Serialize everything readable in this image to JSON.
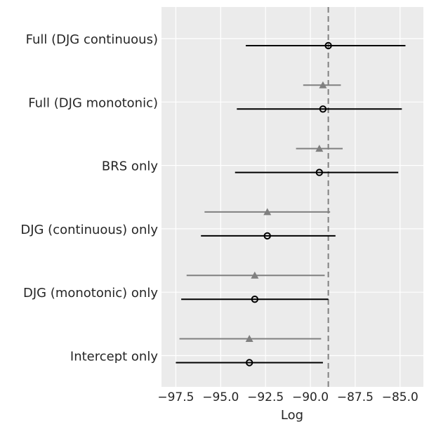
{
  "chart_data": {
    "type": "scatter",
    "xlabel": "Log",
    "xlim": [
      -98.3,
      -83.7
    ],
    "x_ticks": [
      -97.5,
      -95.0,
      -92.5,
      -90.0,
      -87.5,
      -85.0
    ],
    "x_tick_labels": [
      "−97.5",
      "−95.0",
      "−92.5",
      "−90.0",
      "−87.5",
      "−85.0"
    ],
    "reference_line": -89.0,
    "grid": true,
    "categories": [
      "Full (DJG continuous)",
      "Full (DJG monotonic)",
      "BRS only",
      "DJG (continuous) only",
      "DJG (monotonic) only",
      "Intercept only"
    ],
    "series": [
      {
        "marker": "circle",
        "color": "#000000",
        "points": [
          {
            "category": "Full (DJG continuous)",
            "x": -89.0,
            "low": -93.6,
            "high": -84.7
          },
          {
            "category": "Full (DJG monotonic)",
            "x": -89.3,
            "low": -94.1,
            "high": -84.9
          },
          {
            "category": "BRS only",
            "x": -89.5,
            "low": -94.2,
            "high": -85.1
          },
          {
            "category": "DJG (continuous) only",
            "x": -92.4,
            "low": -96.1,
            "high": -88.6
          },
          {
            "category": "DJG (monotonic) only",
            "x": -93.1,
            "low": -97.2,
            "high": -89.0
          },
          {
            "category": "Intercept only",
            "x": -93.4,
            "low": -97.5,
            "high": -89.3
          }
        ]
      },
      {
        "marker": "triangle",
        "color": "#808080",
        "points": [
          {
            "category": "Full (DJG monotonic)",
            "x": -89.3,
            "low": -90.4,
            "high": -88.3
          },
          {
            "category": "BRS only",
            "x": -89.5,
            "low": -90.8,
            "high": -88.2
          },
          {
            "category": "DJG (continuous) only",
            "x": -92.4,
            "low": -95.9,
            "high": -88.9
          },
          {
            "category": "DJG (monotonic) only",
            "x": -93.1,
            "low": -96.9,
            "high": -89.2
          },
          {
            "category": "Intercept only",
            "x": -93.4,
            "low": -97.3,
            "high": -89.4
          }
        ]
      }
    ]
  }
}
